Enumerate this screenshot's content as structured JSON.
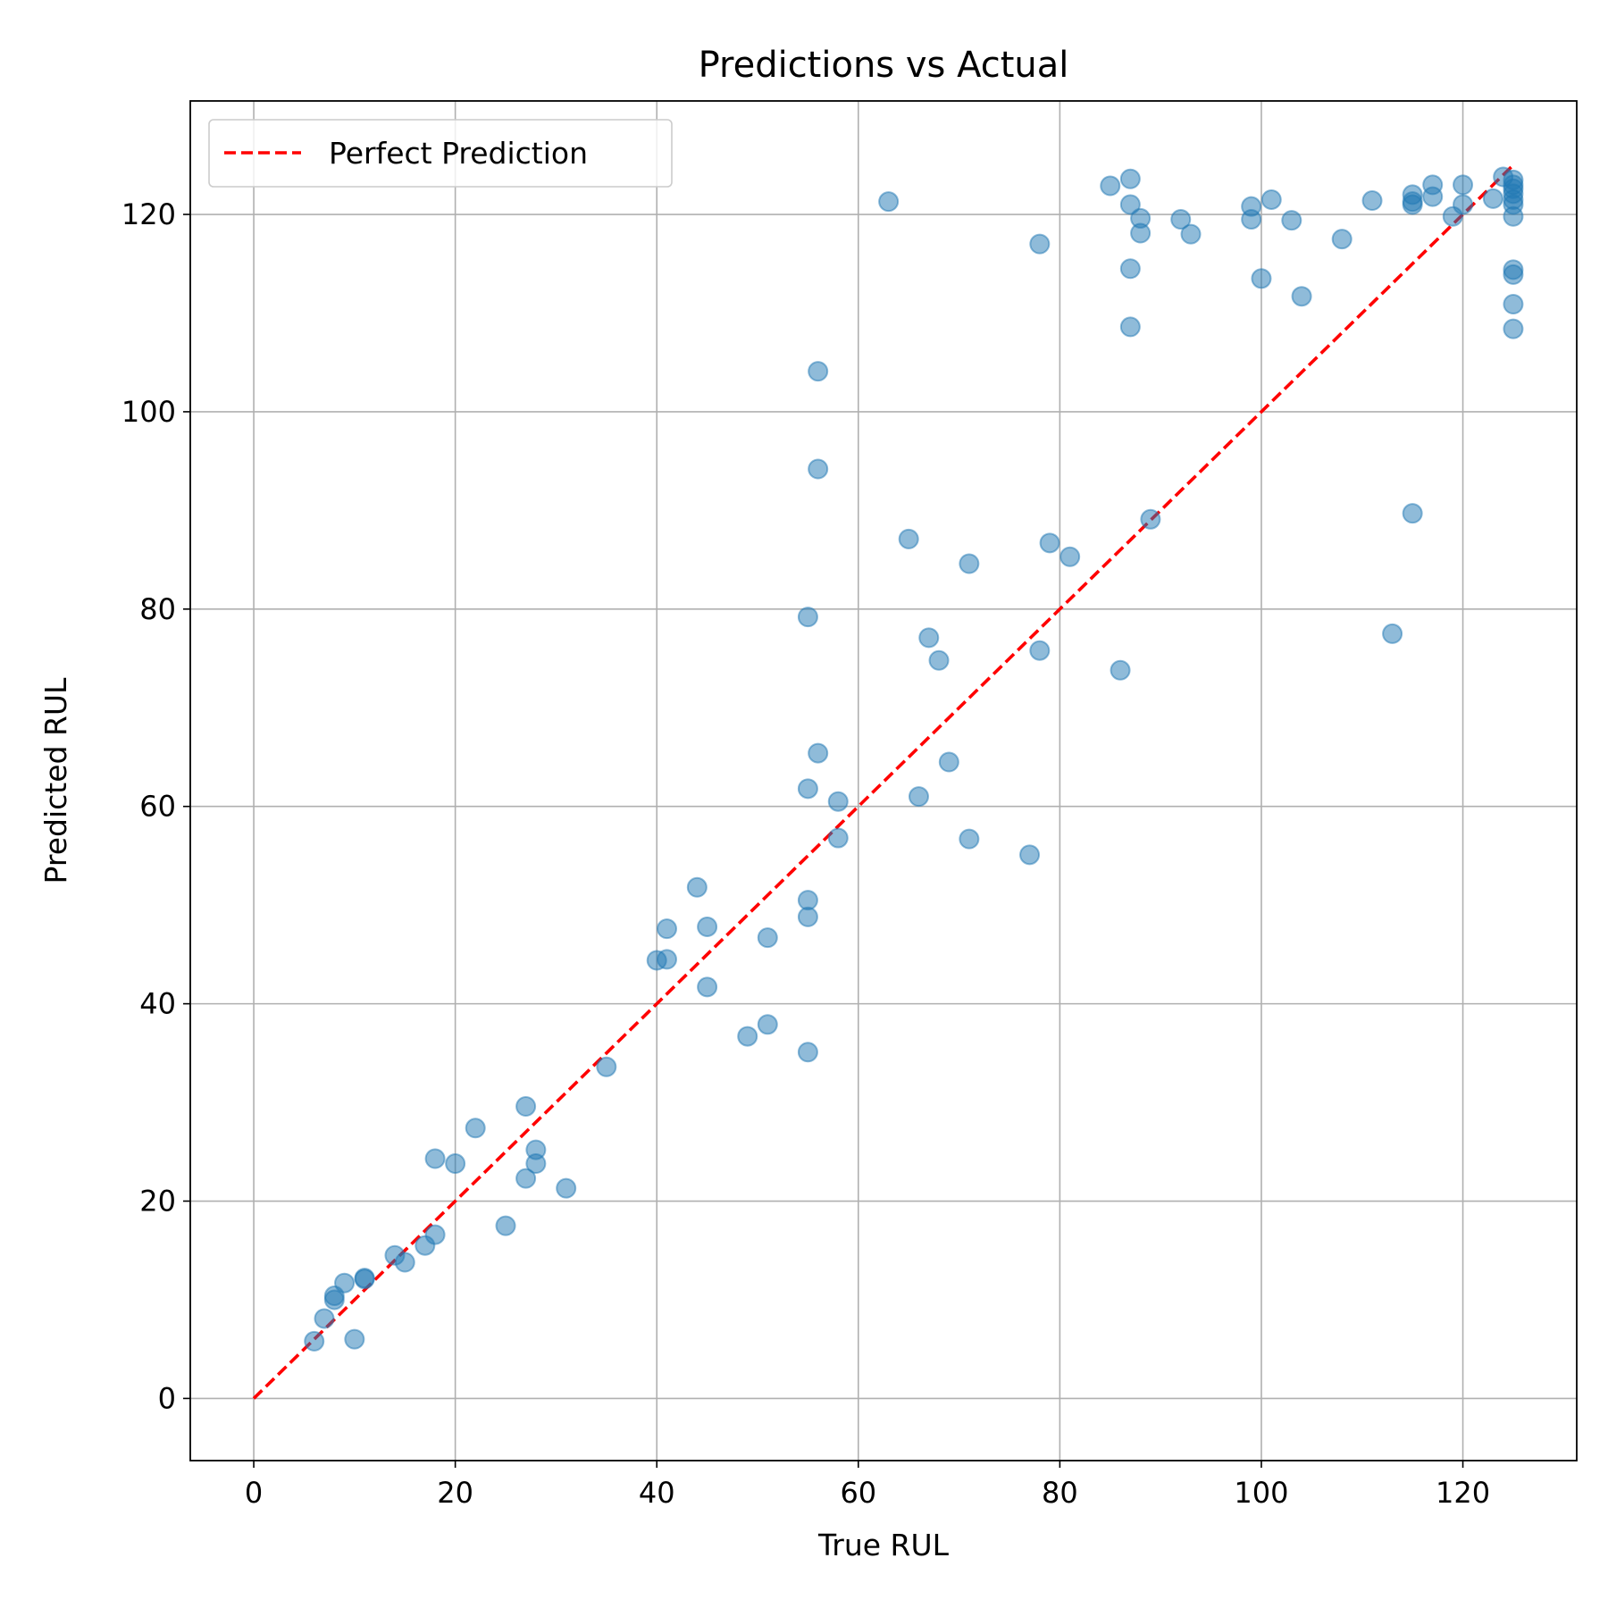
{
  "chart_data": {
    "type": "scatter",
    "title": "Predictions vs Actual",
    "xlabel": "True RUL",
    "ylabel": "Predicted RUL",
    "xlim": [
      -6.3,
      131.3
    ],
    "ylim": [
      -6.3,
      131.5
    ],
    "xticks": [
      0,
      20,
      40,
      60,
      80,
      100,
      120
    ],
    "yticks": [
      0,
      20,
      40,
      60,
      80,
      100,
      120
    ],
    "grid": true,
    "legend_position": "top-left",
    "colors": {
      "points": "#1f77b4",
      "reference": "#ff0000"
    },
    "reference_line": {
      "name": "Perfect Prediction",
      "x": [
        0,
        125
      ],
      "y": [
        0,
        125
      ],
      "style": "dashed"
    },
    "series": [
      {
        "points": [
          [
            6,
            5.8
          ],
          [
            7,
            8.1
          ],
          [
            8,
            10
          ],
          [
            8,
            10.4
          ],
          [
            9,
            11.7
          ],
          [
            10,
            6
          ],
          [
            11,
            12.1
          ],
          [
            11,
            12.2
          ],
          [
            14,
            14.5
          ],
          [
            15,
            13.8
          ],
          [
            17,
            15.5
          ],
          [
            18,
            16.6
          ],
          [
            18,
            24.3
          ],
          [
            20,
            23.8
          ],
          [
            22,
            27.4
          ],
          [
            25,
            17.5
          ],
          [
            27,
            29.6
          ],
          [
            27,
            22.3
          ],
          [
            28,
            25.2
          ],
          [
            28,
            23.8
          ],
          [
            31,
            21.3
          ],
          [
            35,
            33.6
          ],
          [
            40,
            44.4
          ],
          [
            41,
            44.5
          ],
          [
            41,
            47.6
          ],
          [
            44,
            51.8
          ],
          [
            45,
            47.8
          ],
          [
            45,
            41.7
          ],
          [
            49,
            36.7
          ],
          [
            51,
            46.7
          ],
          [
            51,
            37.9
          ],
          [
            55,
            35.1
          ],
          [
            55,
            48.8
          ],
          [
            55,
            50.5
          ],
          [
            55,
            61.8
          ],
          [
            55,
            79.2
          ],
          [
            56,
            65.4
          ],
          [
            56,
            94.2
          ],
          [
            56,
            104.1
          ],
          [
            58,
            60.5
          ],
          [
            58,
            56.8
          ],
          [
            63,
            121.3
          ],
          [
            65,
            87.1
          ],
          [
            66,
            61
          ],
          [
            67,
            77.1
          ],
          [
            68,
            74.8
          ],
          [
            69,
            64.5
          ],
          [
            71,
            84.6
          ],
          [
            71,
            56.7
          ],
          [
            77,
            55.1
          ],
          [
            78,
            75.8
          ],
          [
            78,
            117
          ],
          [
            79,
            86.7
          ],
          [
            81,
            85.3
          ],
          [
            85,
            122.9
          ],
          [
            86,
            73.8
          ],
          [
            87,
            123.6
          ],
          [
            87,
            121
          ],
          [
            87,
            114.5
          ],
          [
            87,
            108.6
          ],
          [
            88,
            119.6
          ],
          [
            88,
            118.1
          ],
          [
            89,
            89.1
          ],
          [
            92,
            119.5
          ],
          [
            93,
            118
          ],
          [
            99,
            120.8
          ],
          [
            99,
            119.5
          ],
          [
            100,
            113.5
          ],
          [
            101,
            121.5
          ],
          [
            103,
            119.4
          ],
          [
            104,
            111.7
          ],
          [
            108,
            117.5
          ],
          [
            111,
            121.4
          ],
          [
            113,
            77.5
          ],
          [
            115,
            122
          ],
          [
            115,
            121.3
          ],
          [
            115,
            121
          ],
          [
            115,
            89.7
          ],
          [
            117,
            123
          ],
          [
            117,
            121.8
          ],
          [
            119,
            119.8
          ],
          [
            120,
            123
          ],
          [
            120,
            121
          ],
          [
            123,
            121.6
          ],
          [
            124,
            123.8
          ],
          [
            125,
            123.5
          ],
          [
            125,
            123
          ],
          [
            125,
            122.6
          ],
          [
            125,
            122.1
          ],
          [
            125,
            121.5
          ],
          [
            125,
            121
          ],
          [
            125,
            119.8
          ],
          [
            125,
            114.4
          ],
          [
            125,
            113.9
          ],
          [
            125,
            110.9
          ],
          [
            125,
            108.4
          ]
        ]
      }
    ]
  }
}
